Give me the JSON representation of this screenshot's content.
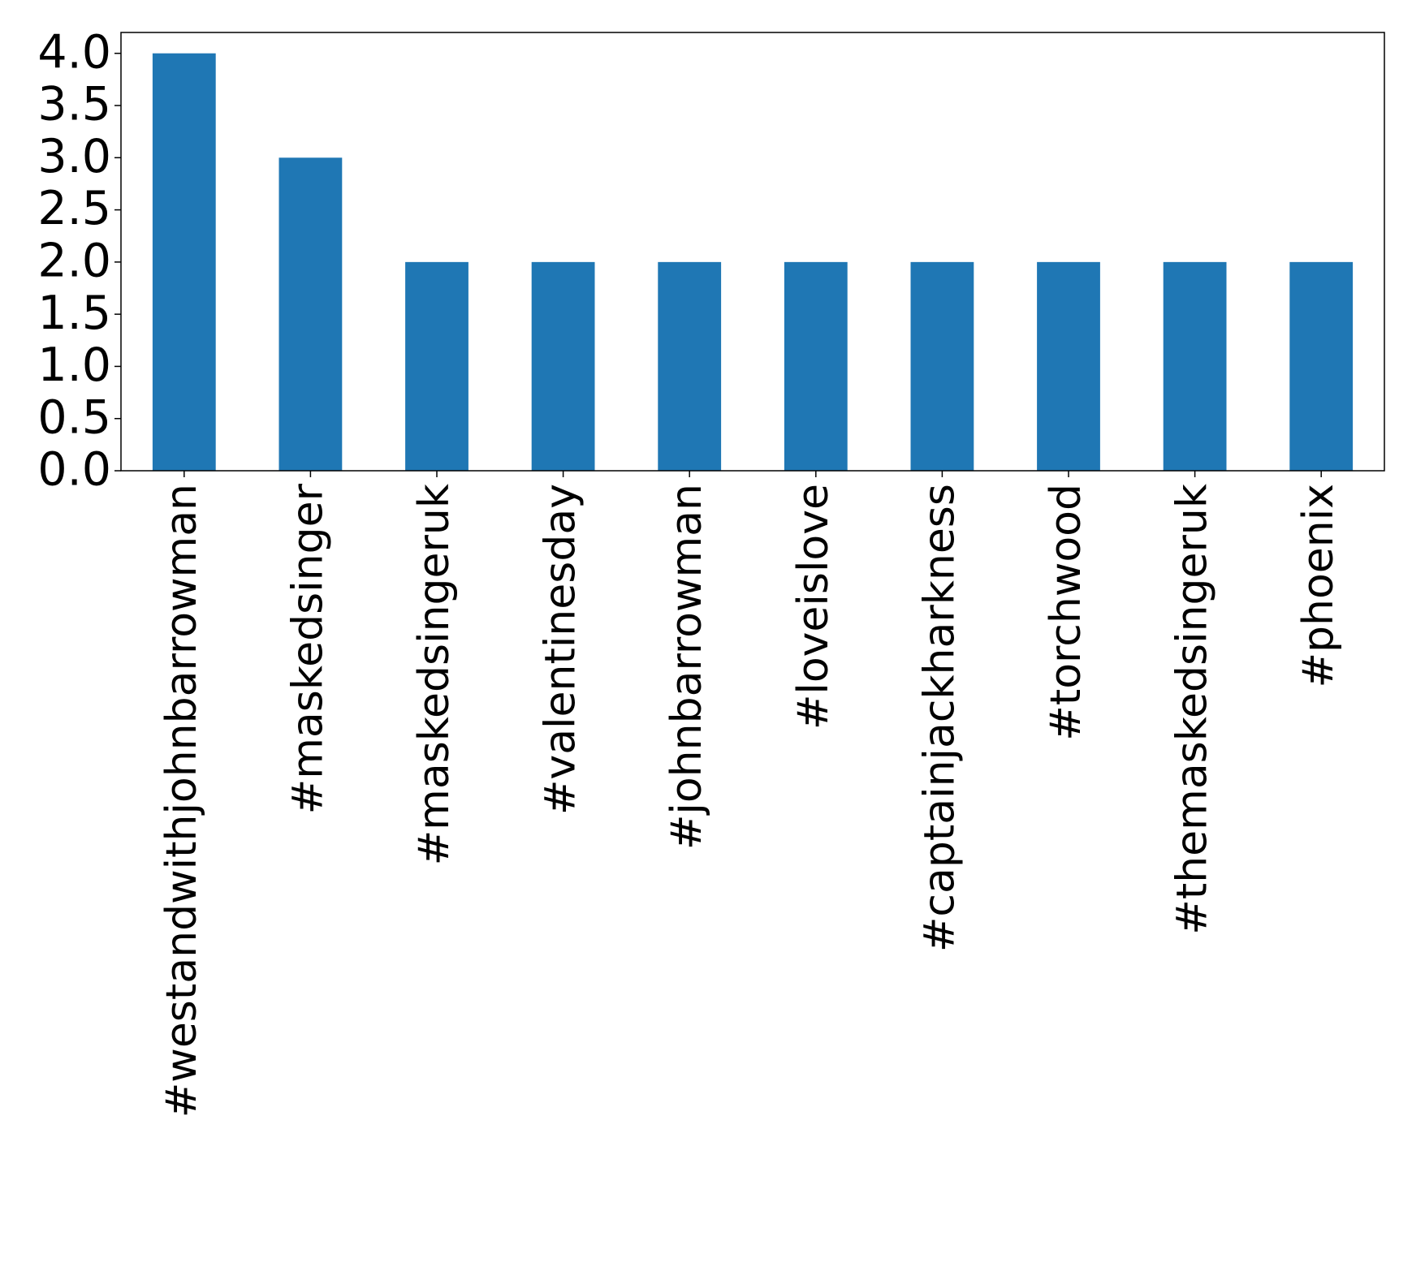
{
  "chart_data": {
    "type": "bar",
    "categories": [
      "#westandwithjohnbarrowman",
      "#maskedsinger",
      "#maskedsingeruk",
      "#valentinesday",
      "#johnbarrowman",
      "#loveislove",
      "#captainjackharkness",
      "#torchwood",
      "#themaskedsingeruk",
      "#phoenix"
    ],
    "values": [
      4,
      3,
      2,
      2,
      2,
      2,
      2,
      2,
      2,
      2
    ],
    "color": "#1f77b4",
    "ylim": [
      0,
      4.2
    ],
    "yticks": [
      {
        "value": 0,
        "label": "0.0"
      },
      {
        "value": 0.5,
        "label": "0.5"
      },
      {
        "value": 1,
        "label": "1.0"
      },
      {
        "value": 1.5,
        "label": "1.5"
      },
      {
        "value": 2,
        "label": "2.0"
      },
      {
        "value": 2.5,
        "label": "2.5"
      },
      {
        "value": 3,
        "label": "3.0"
      },
      {
        "value": 3.5,
        "label": "3.5"
      },
      {
        "value": 4,
        "label": "4.0"
      }
    ],
    "grid": false
  }
}
